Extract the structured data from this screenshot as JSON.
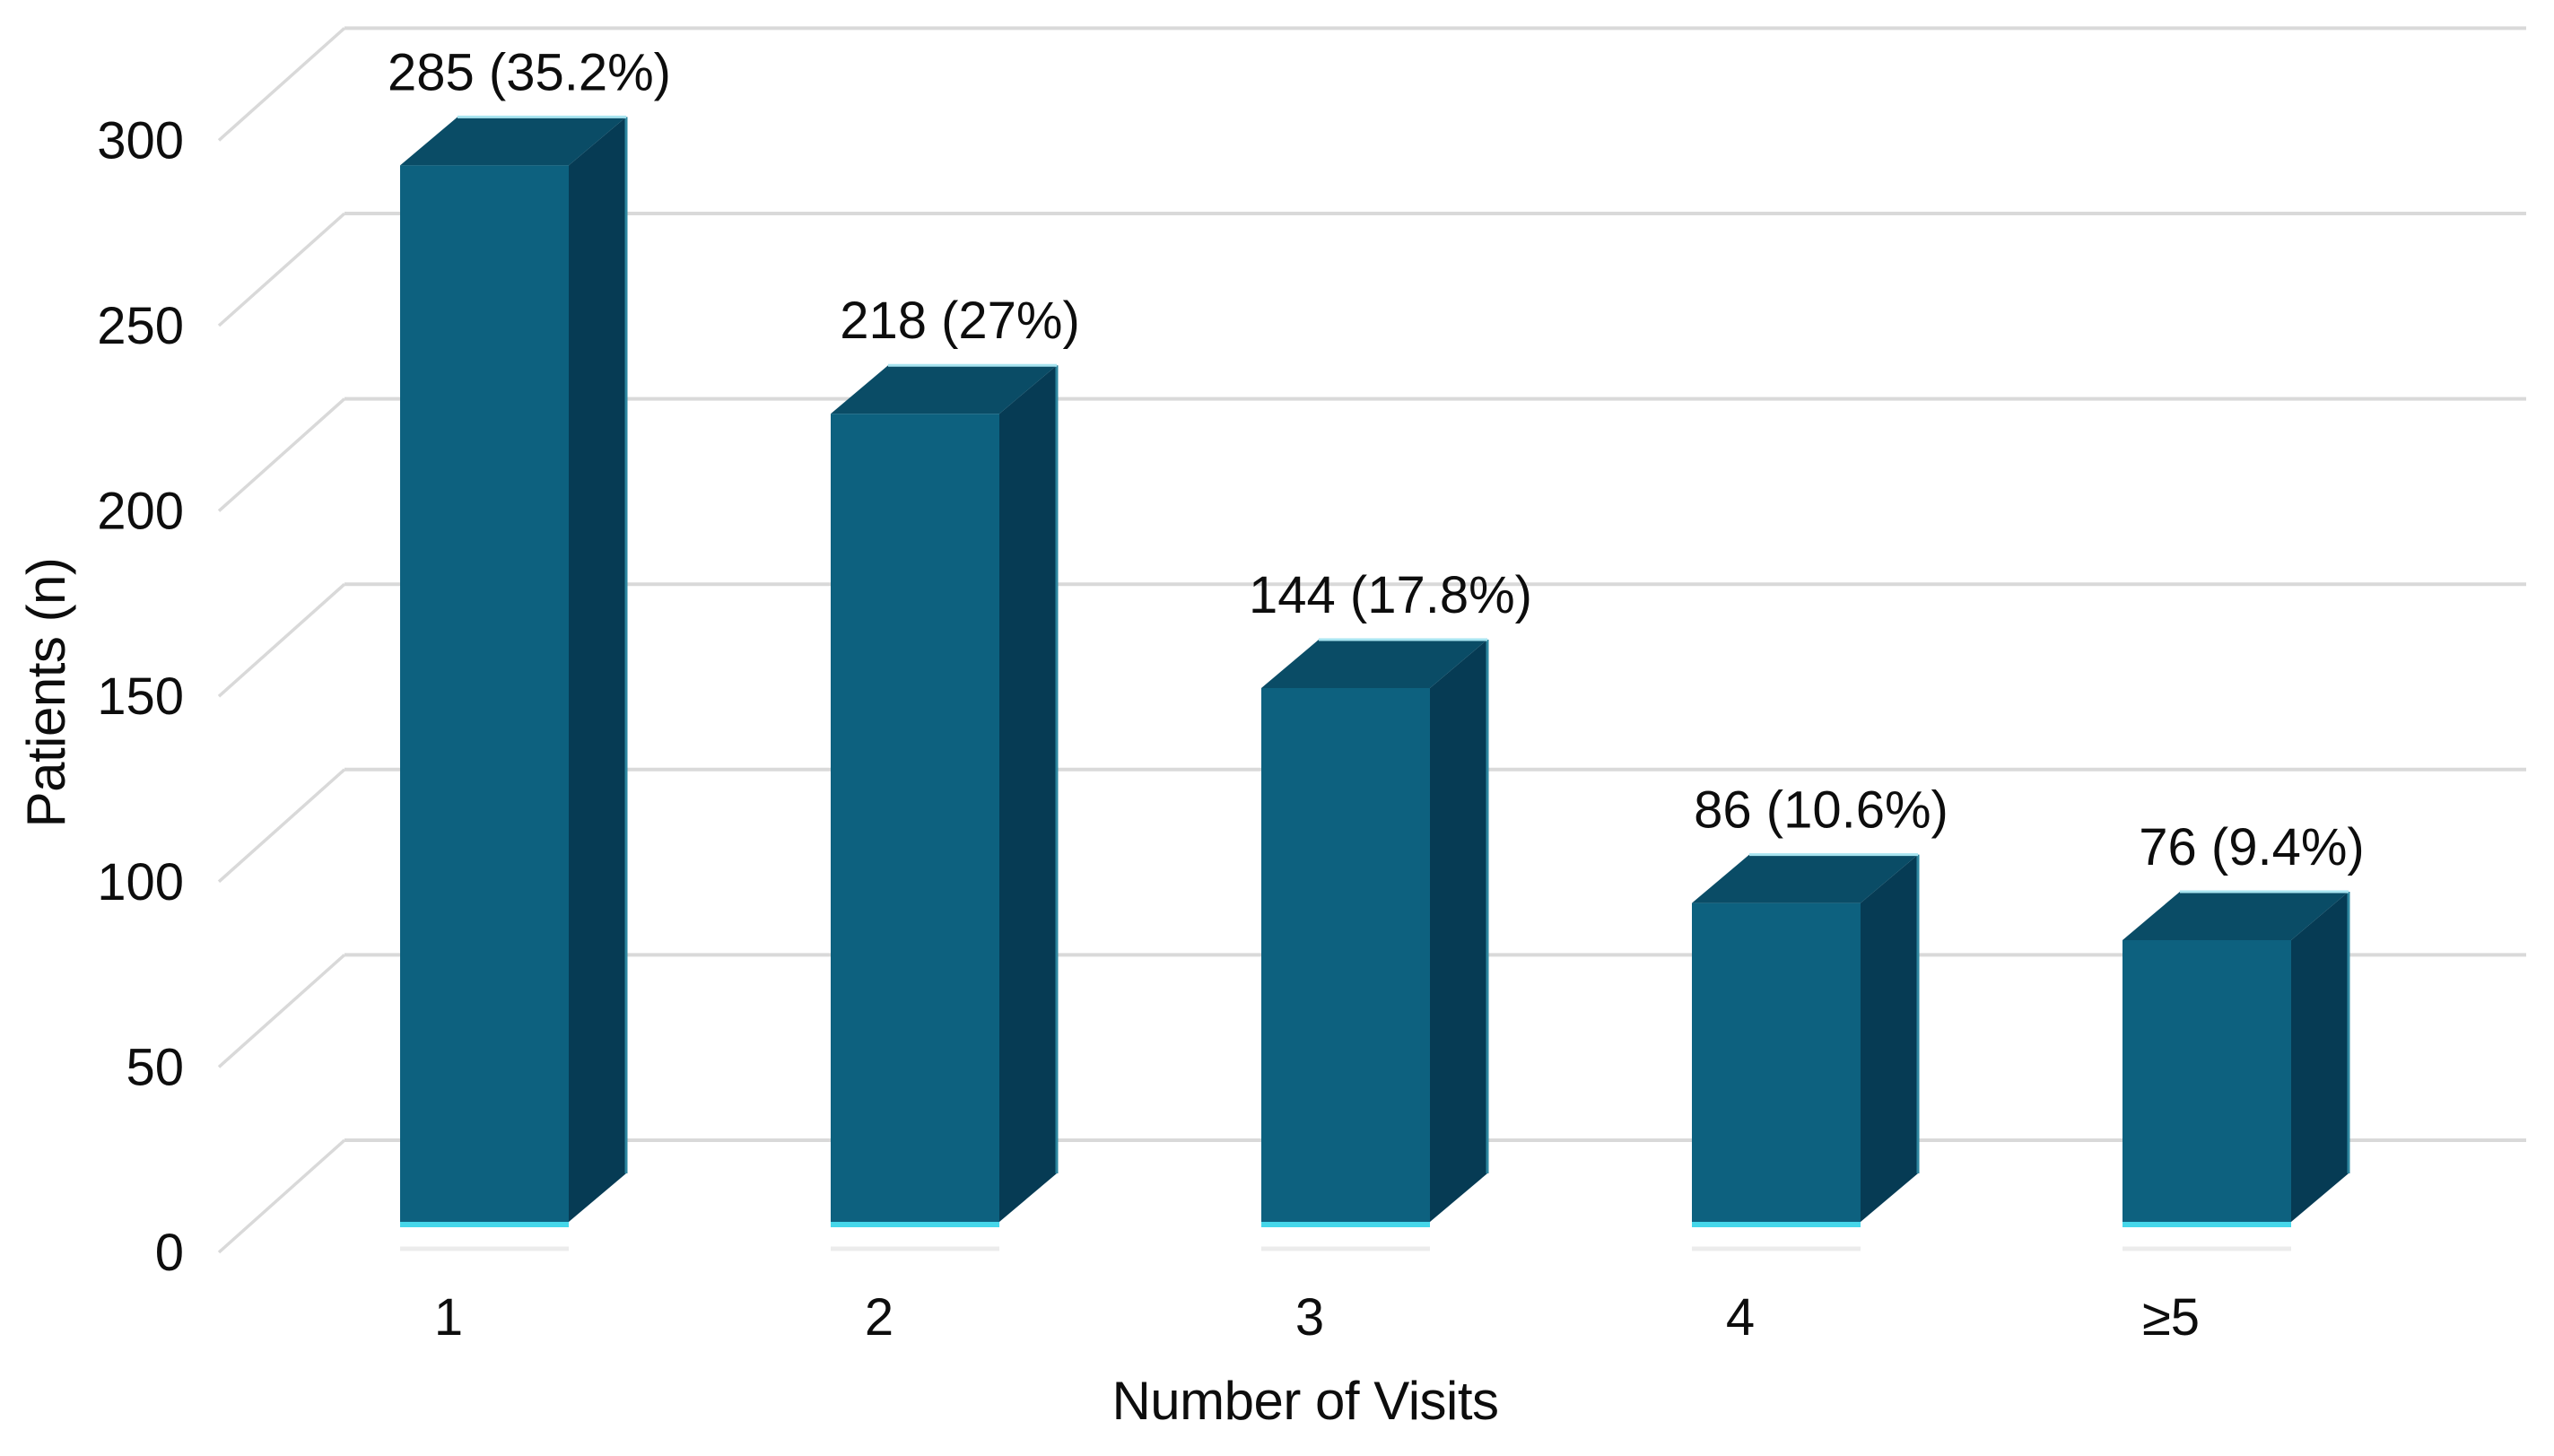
{
  "chart_data": {
    "type": "bar",
    "style": "3d-column",
    "title": "",
    "xlabel": "Number of Visits",
    "ylabel": "Patients (n)",
    "categories": [
      "1",
      "2",
      "3",
      "4",
      "≥5"
    ],
    "values": [
      285,
      218,
      144,
      86,
      76
    ],
    "data_labels": [
      "285 (35.2%)",
      "218 (27%)",
      "144 (17.8%)",
      "86 (10.6%)",
      "76 (9.4%)"
    ],
    "y_ticks": [
      0,
      50,
      100,
      150,
      200,
      250,
      300
    ],
    "ylim": [
      0,
      300
    ],
    "grid": true,
    "legend_position": "none",
    "colors": {
      "bar_front": "#0d617f",
      "bar_top": "#0a4c66",
      "bar_side": "#063b54",
      "bar_side_edge": "#2e87a0",
      "bar_base_highlight": "#45d7ea",
      "bar_top_highlight": "#a8e4f0",
      "bar_shadow": "#ececec",
      "gridline": "#d9d9d9",
      "text": "#0d0d0d",
      "background": "#ffffff"
    }
  }
}
